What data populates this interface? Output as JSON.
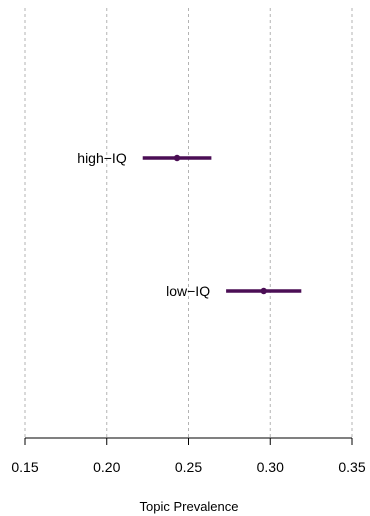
{
  "chart_data": {
    "type": "scatter",
    "subtype": "point-range",
    "title": "",
    "xlabel": "Topic Prevalence",
    "ylabel": "",
    "xlim": [
      0.15,
      0.35
    ],
    "xticks": [
      0.15,
      0.2,
      0.25,
      0.3,
      0.35
    ],
    "xtick_labels": [
      "0.15",
      "0.20",
      "0.25",
      "0.30",
      "0.35"
    ],
    "grid": "vertical dashed",
    "series_color": "#4b0e55",
    "series": [
      {
        "name": "high−IQ",
        "estimate": 0.243,
        "lower": 0.222,
        "upper": 0.264
      },
      {
        "name": "low−IQ",
        "estimate": 0.296,
        "lower": 0.273,
        "upper": 0.319
      }
    ]
  }
}
